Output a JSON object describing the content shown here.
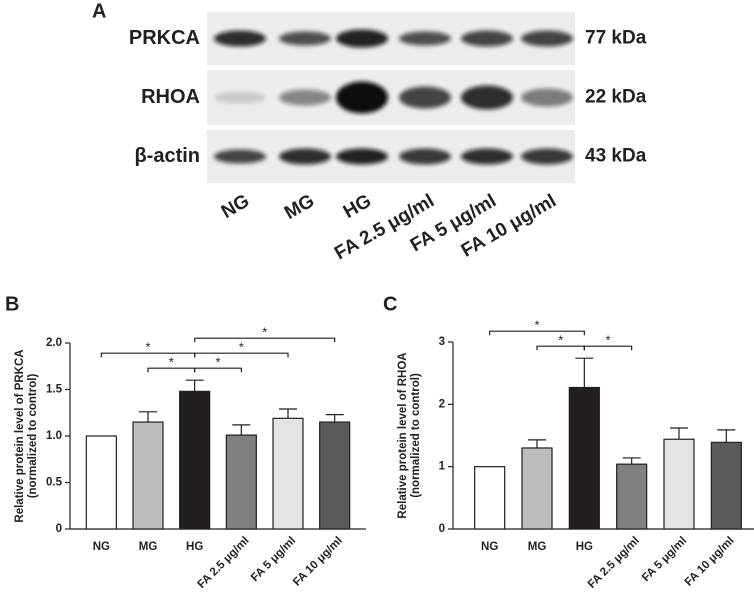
{
  "blot": {
    "panel": "A",
    "proteins": [
      {
        "name": "PRKCA",
        "size": "77 kDa"
      },
      {
        "name": "RHOA",
        "size": "22 kDa"
      },
      {
        "name": "β-actin",
        "size": "43 kDa"
      }
    ],
    "lanes": [
      "NG",
      "MG",
      "HG",
      "FA 2.5 μg/ml",
      "FA 5 μg/ml",
      "FA 10 μg/ml"
    ]
  },
  "chart_data": [
    {
      "type": "bar",
      "panel": "B",
      "ylabel": [
        "Relative protein level of PRKCA",
        "(normalized to control)"
      ],
      "categories": [
        "NG",
        "MG",
        "HG",
        "FA 2.5 μg/ml",
        "FA 5 μg/ml",
        "FA 10 μg/ml"
      ],
      "values": [
        1.0,
        1.15,
        1.48,
        1.01,
        1.19,
        1.15
      ],
      "errors": [
        0,
        0.11,
        0.12,
        0.11,
        0.1,
        0.08
      ],
      "colors": [
        "#ffffff",
        "#bdbdbd",
        "#231f20",
        "#808080",
        "#e4e4e4",
        "#5a5a5a"
      ],
      "ylim": [
        0,
        2
      ],
      "yticks": [
        0,
        0.5,
        {
          "value": 1,
          "label": "1.0"
        },
        1.5,
        {
          "value": 2,
          "label": "2.0"
        }
      ],
      "annotations": [
        {
          "from": "MG",
          "to": "HG",
          "label": "*"
        },
        {
          "from": "NG",
          "to": "HG",
          "label": "*"
        },
        {
          "from": "HG",
          "to": "FA 2.5 μg/ml",
          "label": "*"
        },
        {
          "from": "HG",
          "to": "FA 5 μg/ml",
          "label": "*"
        },
        {
          "from": "HG",
          "to": "FA 10 μg/ml",
          "label": "*"
        }
      ]
    },
    {
      "type": "bar",
      "panel": "C",
      "ylabel": [
        "Relative protein level of RHOA",
        "(normalized to control)"
      ],
      "categories": [
        "NG",
        "MG",
        "HG",
        "FA 2.5 μg/ml",
        "FA 5 μg/ml",
        "FA 10 μg/ml"
      ],
      "values": [
        1.0,
        1.3,
        2.27,
        1.04,
        1.44,
        1.39
      ],
      "errors": [
        0,
        0.13,
        0.47,
        0.1,
        0.18,
        0.2
      ],
      "colors": [
        "#ffffff",
        "#bdbdbd",
        "#231f20",
        "#808080",
        "#e4e4e4",
        "#5a5a5a"
      ],
      "ylim": [
        0,
        3
      ],
      "yticks": [
        0,
        1,
        2,
        3
      ],
      "annotations": [
        {
          "from": "MG",
          "to": "HG",
          "label": "*"
        },
        {
          "from": "NG",
          "to": "HG",
          "label": "*"
        },
        {
          "from": "HG",
          "to": "FA 2.5 μg/ml",
          "label": "*"
        }
      ]
    }
  ]
}
